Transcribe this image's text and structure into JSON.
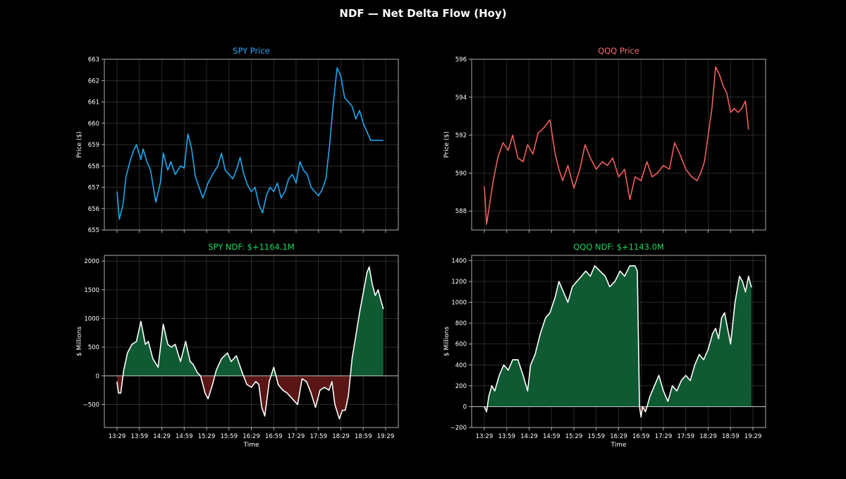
{
  "figure": {
    "title": "NDF — Net Delta Flow (Hoy)",
    "background": "#000000",
    "grid_color": "#3a3a3a",
    "frame_color": "#bfbfbf"
  },
  "chart_data": [
    {
      "id": "spy_price",
      "type": "line",
      "title": "SPY Price",
      "title_color": "#2aa8ff",
      "xlabel": "",
      "ylabel": "Price ($)",
      "line_color": "#1fa8f0",
      "grid": true,
      "xlim": [
        0,
        360
      ],
      "ylim": [
        655,
        663
      ],
      "yticks": [
        655,
        656,
        657,
        658,
        659,
        660,
        661,
        662,
        663
      ],
      "ytick_labels": [
        "655",
        "656",
        "657",
        "658",
        "659",
        "660",
        "661",
        "662",
        "663"
      ],
      "xticks": [
        0,
        30,
        60,
        90,
        120,
        150,
        180,
        210,
        240,
        270,
        300,
        330,
        360
      ],
      "xtick_labels": [],
      "x_unit": "minutes after 13:29",
      "x": [
        0,
        3,
        8,
        12,
        18,
        22,
        26,
        32,
        35,
        40,
        45,
        52,
        58,
        62,
        68,
        72,
        78,
        85,
        90,
        95,
        100,
        105,
        110,
        115,
        122,
        128,
        135,
        140,
        145,
        150,
        155,
        160,
        165,
        170,
        175,
        180,
        185,
        190,
        195,
        200,
        205,
        210,
        215,
        220,
        225,
        230,
        235,
        240,
        245,
        250,
        255,
        260,
        265,
        270,
        275,
        280,
        285,
        290,
        295,
        300,
        305,
        310,
        315,
        320,
        325,
        330,
        335,
        340,
        345,
        350,
        354,
        357
      ],
      "y": [
        656.8,
        655.5,
        656.2,
        657.5,
        658.3,
        658.7,
        659.0,
        658.3,
        658.8,
        658.2,
        657.8,
        656.3,
        657.2,
        658.6,
        657.8,
        658.2,
        657.6,
        658.0,
        657.9,
        659.5,
        658.8,
        657.5,
        657.0,
        656.5,
        657.2,
        657.6,
        658.0,
        658.6,
        657.8,
        657.6,
        657.4,
        657.8,
        658.4,
        657.6,
        657.1,
        656.8,
        657.0,
        656.2,
        655.8,
        656.6,
        657.0,
        656.8,
        657.2,
        656.5,
        656.8,
        657.4,
        657.6,
        657.2,
        658.2,
        657.8,
        657.6,
        657.0,
        656.8,
        656.6,
        656.9,
        657.4,
        659.0,
        661.0,
        662.6,
        662.2,
        661.2,
        661.0,
        660.8,
        660.2,
        660.6,
        660.0,
        659.6,
        659.2,
        659.2,
        659.2,
        659.2,
        659.2
      ]
    },
    {
      "id": "qqq_price",
      "type": "line",
      "title": "QQQ Price",
      "title_color": "#ff6e6e",
      "xlabel": "",
      "ylabel": "Price ($)",
      "line_color": "#f25f5f",
      "grid": true,
      "xlim": [
        0,
        360
      ],
      "ylim": [
        587.0,
        596.0
      ],
      "yticks": [
        588,
        590,
        592,
        594,
        596
      ],
      "ytick_labels": [
        "588",
        "590",
        "592",
        "594",
        "596"
      ],
      "xticks": [
        0,
        30,
        60,
        90,
        120,
        150,
        180,
        210,
        240,
        270,
        300,
        330,
        360
      ],
      "xtick_labels": [],
      "x_unit": "minutes after 13:29",
      "x": [
        0,
        3,
        8,
        12,
        18,
        25,
        32,
        38,
        45,
        52,
        58,
        65,
        72,
        80,
        88,
        95,
        100,
        105,
        112,
        120,
        128,
        135,
        142,
        150,
        158,
        165,
        172,
        180,
        188,
        195,
        202,
        210,
        218,
        225,
        232,
        240,
        248,
        255,
        262,
        270,
        278,
        285,
        290,
        295,
        300,
        305,
        310,
        315,
        320,
        325,
        330,
        335,
        340,
        345,
        350,
        354
      ],
      "y": [
        589.3,
        587.3,
        588.6,
        589.6,
        590.8,
        591.6,
        591.2,
        592.0,
        590.8,
        590.6,
        591.5,
        591.0,
        592.1,
        592.4,
        592.8,
        591.0,
        590.2,
        589.6,
        590.4,
        589.2,
        590.2,
        591.5,
        590.8,
        590.2,
        590.6,
        590.4,
        590.8,
        589.8,
        590.2,
        588.6,
        589.8,
        589.6,
        590.6,
        589.8,
        590.0,
        590.4,
        590.2,
        591.6,
        591.0,
        590.2,
        589.8,
        589.6,
        590.0,
        590.6,
        592.0,
        593.4,
        595.6,
        595.2,
        594.6,
        594.2,
        593.2,
        593.4,
        593.2,
        593.4,
        593.8,
        592.3
      ]
    },
    {
      "id": "spy_ndf",
      "type": "area",
      "title": "SPY NDF: $+1164.1M",
      "title_color": "#1fd65f",
      "xlabel": "Time",
      "ylabel": "$ Millions",
      "line_color": "#ffffff",
      "positive_fill": "#0f5a32",
      "negative_fill": "#5a1515",
      "grid": true,
      "xlim": [
        0,
        360
      ],
      "ylim": [
        -900,
        2100
      ],
      "yticks": [
        -500,
        0,
        500,
        1000,
        1500,
        2000
      ],
      "ytick_labels": [
        "−500",
        "0",
        "500",
        "1000",
        "1500",
        "2000"
      ],
      "xticks": [
        0,
        30,
        60,
        90,
        120,
        150,
        180,
        210,
        240,
        270,
        300,
        330,
        360
      ],
      "xtick_labels": [
        "13:29",
        "13:59",
        "14:29",
        "14:59",
        "15:29",
        "15:59",
        "16:29",
        "16:59",
        "17:29",
        "17:59",
        "18:29",
        "18:59",
        "19:29"
      ],
      "x_unit": "minutes after 13:29",
      "x": [
        0,
        2,
        5,
        9,
        14,
        20,
        26,
        32,
        35,
        38,
        42,
        48,
        55,
        62,
        68,
        73,
        78,
        85,
        92,
        98,
        102,
        108,
        112,
        118,
        122,
        128,
        133,
        140,
        148,
        153,
        160,
        168,
        174,
        180,
        186,
        190,
        194,
        198,
        204,
        210,
        216,
        222,
        228,
        235,
        242,
        248,
        254,
        260,
        266,
        272,
        278,
        284,
        288,
        292,
        298,
        302,
        306,
        310,
        315,
        320,
        325,
        330,
        335,
        338,
        342,
        346,
        350,
        354,
        357
      ],
      "y": [
        -100,
        -300,
        -300,
        100,
        400,
        550,
        600,
        950,
        750,
        550,
        600,
        300,
        150,
        900,
        550,
        500,
        550,
        250,
        600,
        250,
        200,
        50,
        0,
        -300,
        -400,
        -150,
        100,
        300,
        400,
        250,
        350,
        50,
        -150,
        -200,
        -100,
        -150,
        -550,
        -700,
        -100,
        150,
        -150,
        -250,
        -300,
        -400,
        -500,
        -50,
        -100,
        -300,
        -550,
        -250,
        -200,
        -250,
        -100,
        -500,
        -750,
        -600,
        -600,
        -350,
        300,
        700,
        1100,
        1450,
        1800,
        1900,
        1600,
        1400,
        1500,
        1300,
        1164
      ]
    },
    {
      "id": "qqq_ndf",
      "type": "area",
      "title": "QQQ NDF: $+1143.0M",
      "title_color": "#1fd65f",
      "xlabel": "Time",
      "ylabel": "$ Millions",
      "line_color": "#ffffff",
      "positive_fill": "#0f5a32",
      "negative_fill": "#5a1515",
      "grid": true,
      "xlim": [
        0,
        360
      ],
      "ylim": [
        -200,
        1450
      ],
      "yticks": [
        -200,
        0,
        200,
        400,
        600,
        800,
        1000,
        1200,
        1400
      ],
      "ytick_labels": [
        "−200",
        "0",
        "200",
        "400",
        "600",
        "800",
        "1000",
        "1200",
        "1400"
      ],
      "xticks": [
        0,
        30,
        60,
        90,
        120,
        150,
        180,
        210,
        240,
        270,
        300,
        330,
        360
      ],
      "xtick_labels": [
        "13:29",
        "13:59",
        "14:29",
        "14:59",
        "15:29",
        "15:59",
        "16:29",
        "16:59",
        "17:29",
        "17:59",
        "18:29",
        "18:59",
        "19:29"
      ],
      "x_unit": "minutes after 13:29",
      "x": [
        0,
        3,
        6,
        10,
        14,
        20,
        26,
        32,
        38,
        45,
        52,
        58,
        62,
        68,
        75,
        82,
        88,
        95,
        100,
        106,
        112,
        118,
        124,
        130,
        136,
        142,
        148,
        155,
        162,
        168,
        175,
        182,
        188,
        195,
        202,
        205,
        208,
        210,
        212,
        216,
        222,
        228,
        234,
        240,
        246,
        252,
        258,
        264,
        270,
        276,
        282,
        288,
        294,
        300,
        306,
        310,
        314,
        318,
        322,
        326,
        330,
        336,
        342,
        346,
        350,
        354,
        358
      ],
      "y": [
        0,
        -50,
        100,
        200,
        150,
        300,
        400,
        350,
        450,
        450,
        300,
        150,
        400,
        500,
        700,
        850,
        900,
        1050,
        1200,
        1100,
        1000,
        1150,
        1200,
        1250,
        1300,
        1250,
        1350,
        1300,
        1250,
        1150,
        1200,
        1300,
        1250,
        1350,
        1350,
        1300,
        0,
        -100,
        0,
        -50,
        100,
        200,
        300,
        150,
        50,
        200,
        150,
        250,
        300,
        250,
        400,
        500,
        450,
        550,
        700,
        750,
        650,
        850,
        900,
        750,
        600,
        1000,
        1250,
        1200,
        1100,
        1250,
        1143
      ]
    }
  ]
}
